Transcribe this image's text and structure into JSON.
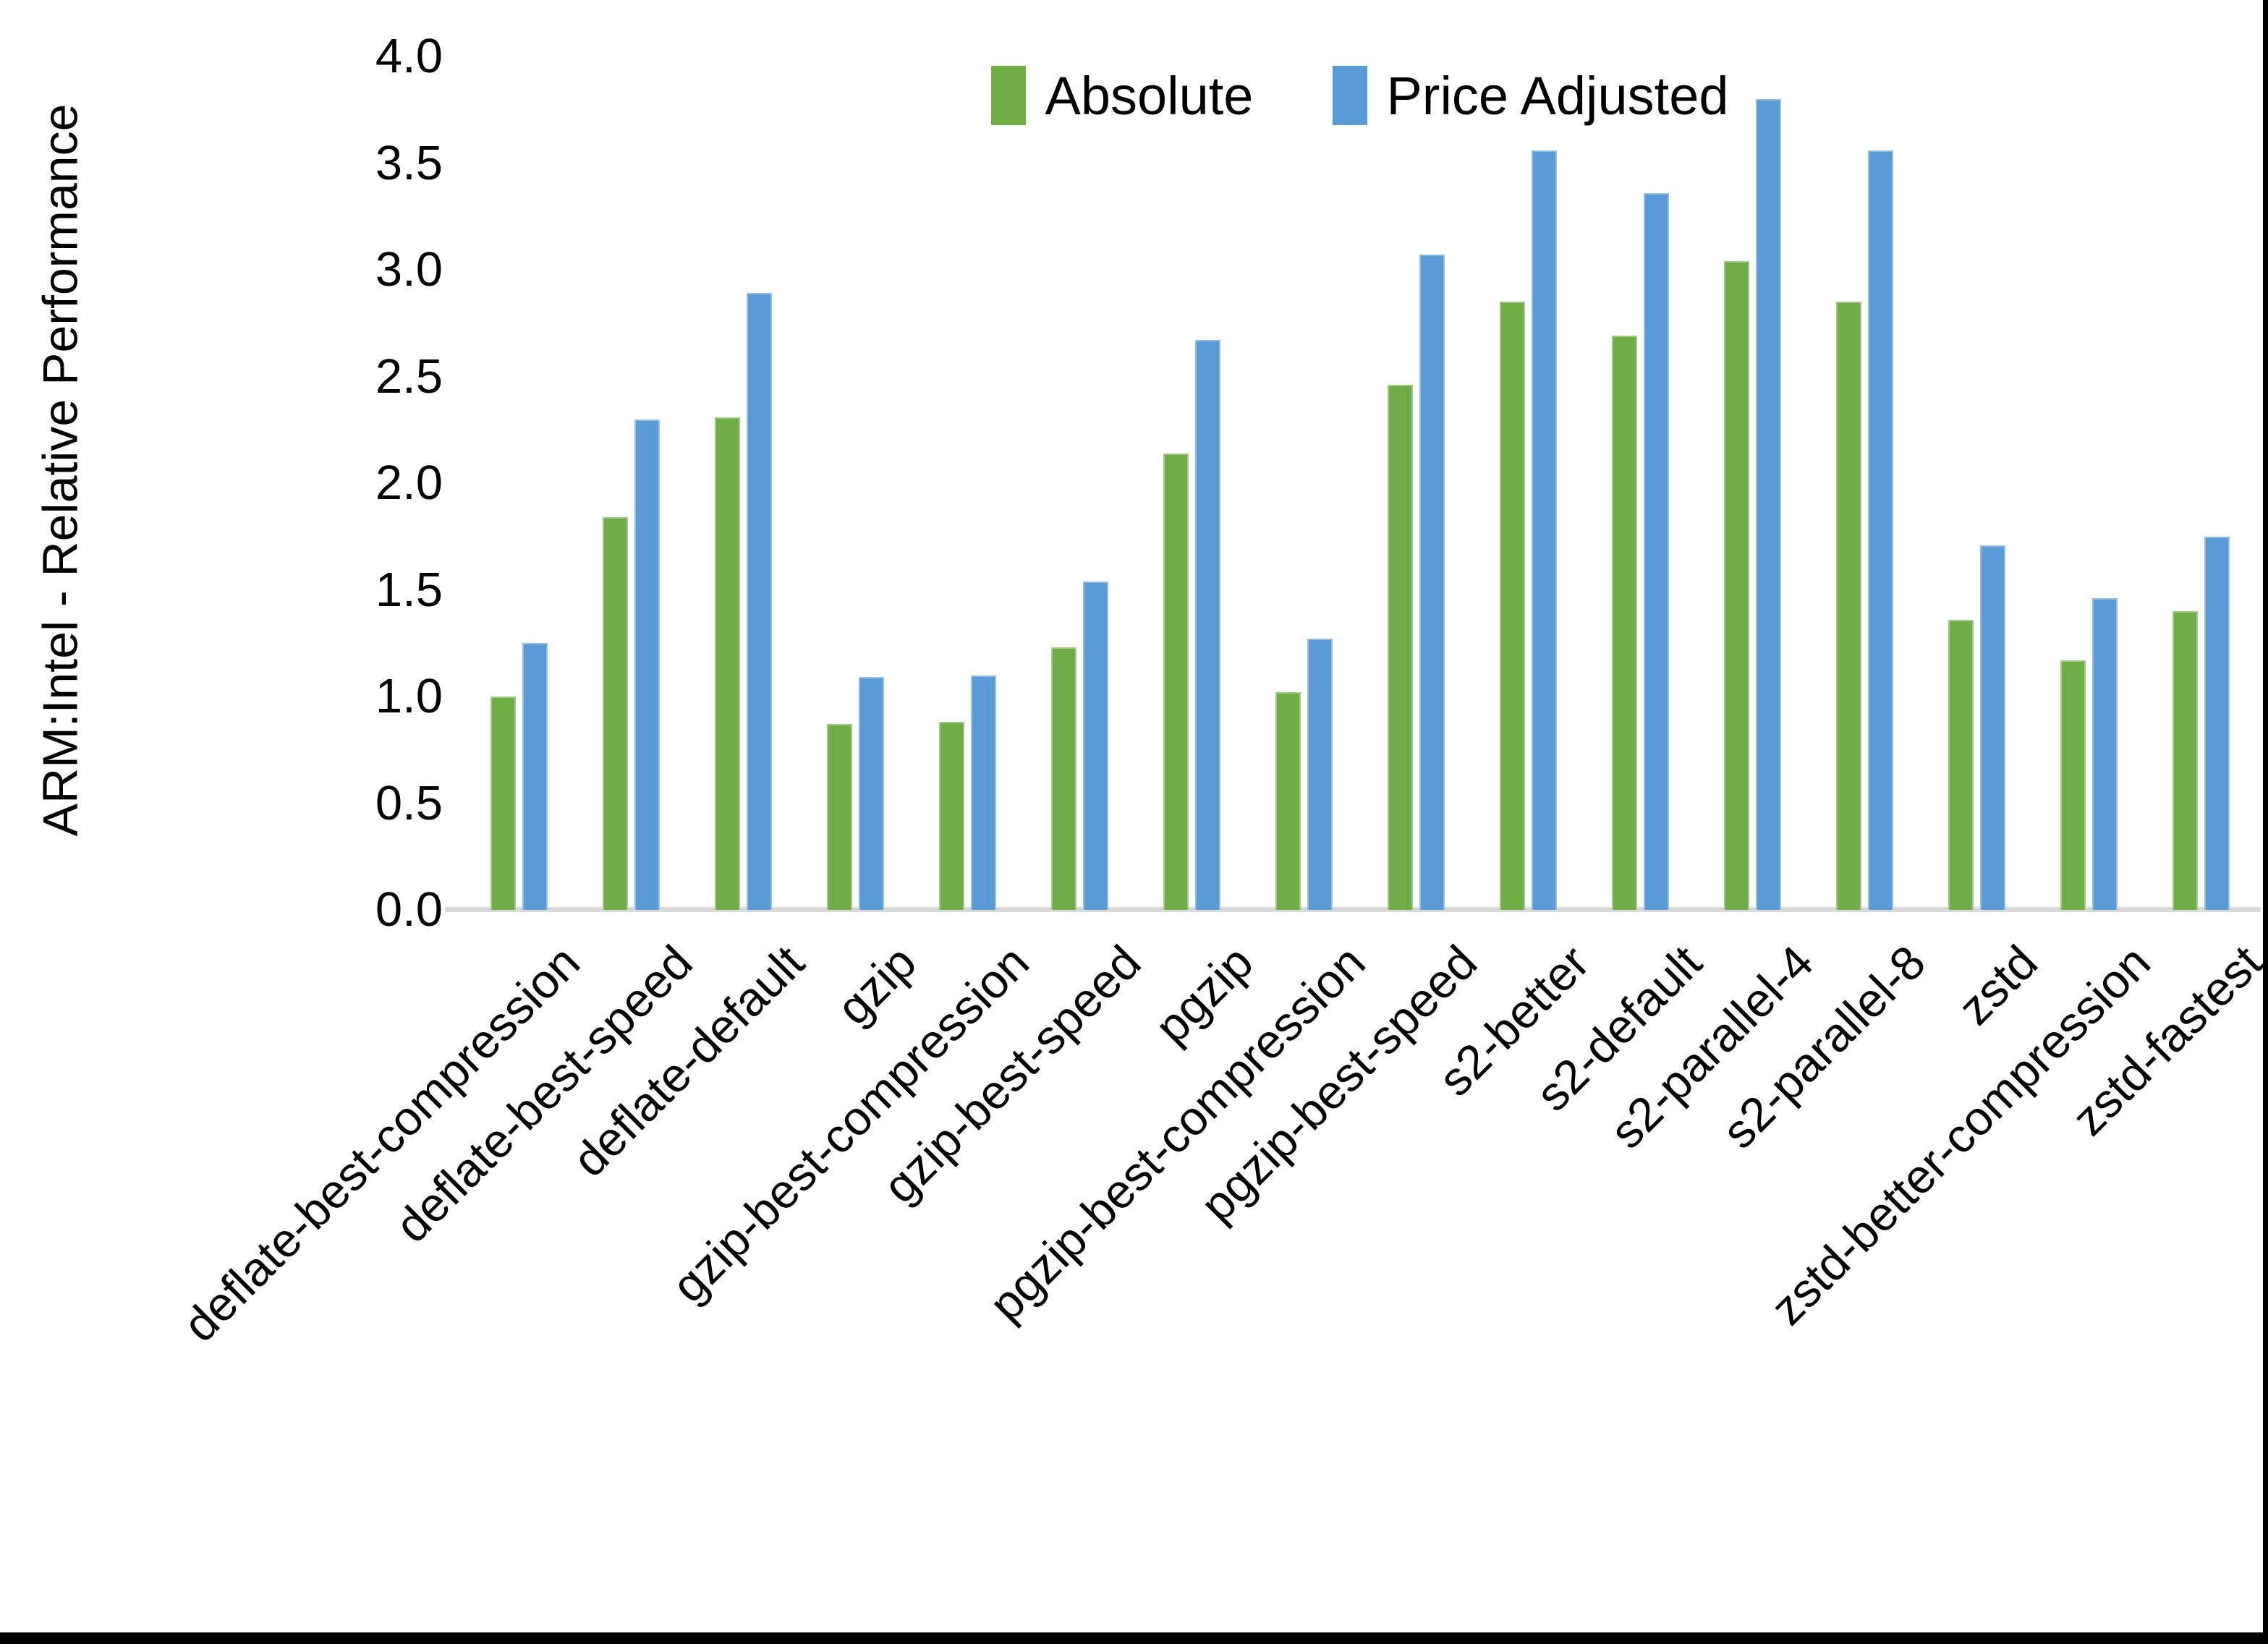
{
  "page": {
    "background": "#ffffff",
    "frame_color": "#000000"
  },
  "chart_data": {
    "type": "bar",
    "title": "",
    "xlabel": "",
    "ylabel": "ARM:Intel - Relative Performance",
    "ylim": [
      0.0,
      4.0
    ],
    "y_tick_step": 0.5,
    "y_ticks": [
      "0.0",
      "0.5",
      "1.0",
      "1.5",
      "2.0",
      "2.5",
      "3.0",
      "3.5",
      "4.0"
    ],
    "grid": false,
    "legend_position": "top-center",
    "axis_line_color": "#D9D9D9",
    "text_color": "#000000",
    "categories": [
      "deflate-best-compression",
      "deflate-best-speed",
      "deflate-default",
      "gzip",
      "gzip-best-compression",
      "gzip-best-speed",
      "pgzip",
      "pgzip-best-compression",
      "pgzip-best-speed",
      "s2-better",
      "s2-default",
      "s2-parallel-4",
      "s2-parallel-8",
      "zstd",
      "zstd-better-compression",
      "zstd-fastest"
    ],
    "series": [
      {
        "name": "Absolute",
        "color": "#70AD47",
        "values": [
          1.0,
          1.84,
          2.31,
          0.87,
          0.88,
          1.23,
          2.14,
          1.02,
          2.46,
          2.85,
          2.69,
          3.04,
          2.85,
          1.36,
          1.17,
          1.4
        ]
      },
      {
        "name": "Price Adjusted",
        "color": "#5B9BD5",
        "values": [
          1.25,
          2.3,
          2.89,
          1.09,
          1.1,
          1.54,
          2.67,
          1.27,
          3.07,
          3.56,
          3.36,
          3.8,
          3.56,
          1.71,
          1.46,
          1.75
        ]
      }
    ]
  }
}
